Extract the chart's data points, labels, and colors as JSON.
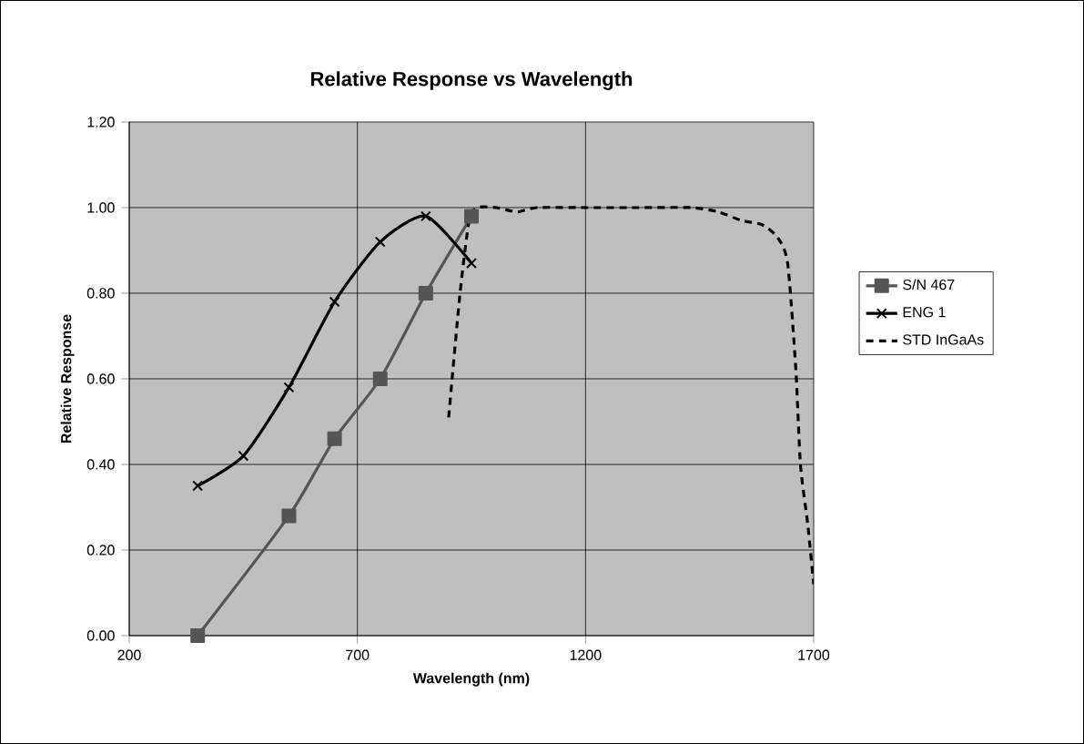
{
  "chart_data": {
    "type": "line",
    "title": "Relative Response vs Wavelength",
    "xlabel": "Wavelength (nm)",
    "ylabel": "Relative Response",
    "xlim": [
      200,
      1700
    ],
    "xticks": [
      200,
      700,
      1200,
      1700
    ],
    "ylim": [
      0,
      1.2
    ],
    "yticks": [
      {
        "value": 0,
        "label": "0.00"
      },
      {
        "value": 0.2,
        "label": "0.20"
      },
      {
        "value": 0.4,
        "label": "0.40"
      },
      {
        "value": 0.6,
        "label": "0.60"
      },
      {
        "value": 0.8,
        "label": "0.80"
      },
      {
        "value": 1.0,
        "label": "1.00"
      },
      {
        "value": 1.2,
        "label": "1.20"
      }
    ],
    "grid": true,
    "legend": "right",
    "series": [
      {
        "name": "S/N 467",
        "color": "#555555",
        "marker": "square",
        "line_style": "solid",
        "x": [
          350,
          550,
          650,
          750,
          850,
          950
        ],
        "values": [
          0.0,
          0.28,
          0.46,
          0.6,
          0.8,
          0.98
        ]
      },
      {
        "name": "ENG 1",
        "color": "#000000",
        "marker": "cross",
        "line_style": "solid",
        "x": [
          350,
          450,
          550,
          650,
          750,
          850,
          950
        ],
        "values": [
          0.35,
          0.42,
          0.58,
          0.78,
          0.92,
          0.98,
          0.87
        ]
      },
      {
        "name": "STD InGaAs",
        "color": "#000000",
        "marker": "none",
        "line_style": "dashed",
        "x": [
          900,
          925,
          945,
          963,
          1005,
          1050,
          1093,
          1200,
          1312,
          1431,
          1491,
          1541,
          1587,
          1621,
          1643,
          1661,
          1671,
          1687,
          1700
        ],
        "values": [
          0.51,
          0.8,
          0.97,
          1.0,
          1.0,
          0.99,
          1.0,
          1.0,
          1.0,
          1.0,
          0.99,
          0.97,
          0.96,
          0.93,
          0.87,
          0.62,
          0.4,
          0.26,
          0.12
        ]
      }
    ]
  }
}
